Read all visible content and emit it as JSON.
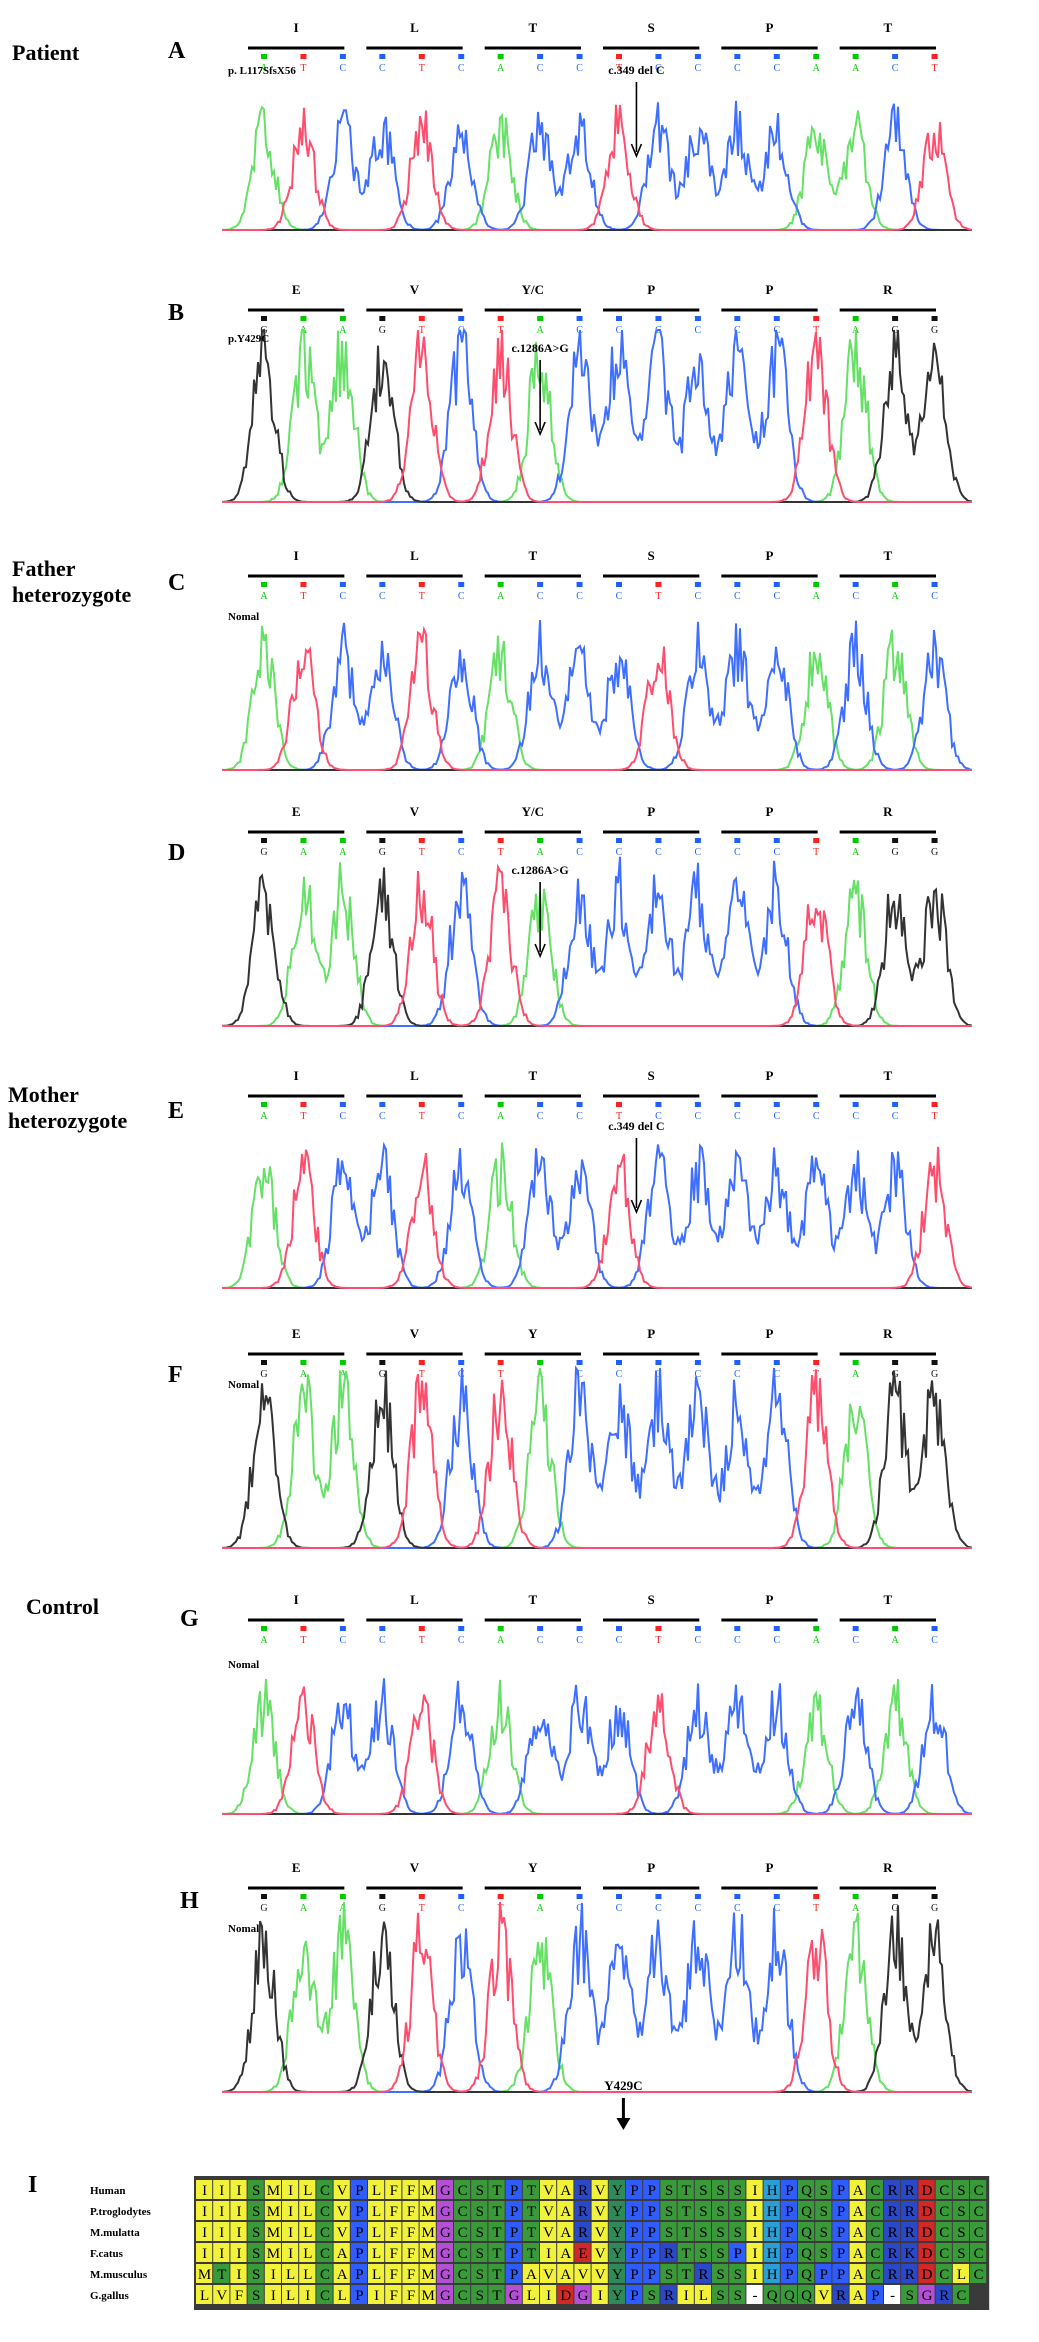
{
  "groups": {
    "patient": "Patient",
    "father": "Father heterozygote",
    "mother": "Mother heterozygote",
    "control": "Control"
  },
  "panels": [
    {
      "letter": "A",
      "aa": [
        "I",
        "L",
        "T",
        "S",
        "P",
        "T"
      ],
      "bases": [
        "A",
        "T",
        "C",
        "C",
        "T",
        "C",
        "A",
        "C",
        "C",
        "T",
        "C",
        "C",
        "C",
        "C",
        "A",
        "A",
        "C",
        "T"
      ],
      "variant": "p. L117SfsX56",
      "mutation": "c.349 del C",
      "seed": 1
    },
    {
      "letter": "B",
      "aa": [
        "E",
        "V",
        "Y/C",
        "P",
        "P",
        "R"
      ],
      "bases": [
        "G",
        "A",
        "A",
        "G",
        "T",
        "C",
        "T",
        "A",
        "C",
        "C",
        "C",
        "C",
        "C",
        "C",
        "T",
        "A",
        "G",
        "G"
      ],
      "variant": "p.Y429C",
      "mutation": "c.1286A>G",
      "seed": 2
    },
    {
      "letter": "C",
      "aa": [
        "I",
        "L",
        "T",
        "S",
        "P",
        "T"
      ],
      "bases": [
        "A",
        "T",
        "C",
        "C",
        "T",
        "C",
        "A",
        "C",
        "C",
        "C",
        "T",
        "C",
        "C",
        "C",
        "A",
        "C",
        "A",
        "C"
      ],
      "variant": "Nomal",
      "mutation": "",
      "seed": 3
    },
    {
      "letter": "D",
      "aa": [
        "E",
        "V",
        "Y/C",
        "P",
        "P",
        "R"
      ],
      "bases": [
        "G",
        "A",
        "A",
        "G",
        "T",
        "C",
        "T",
        "A",
        "C",
        "C",
        "C",
        "C",
        "C",
        "C",
        "T",
        "A",
        "G",
        "G"
      ],
      "variant": "",
      "mutation": "c.1286A>G",
      "seed": 4
    },
    {
      "letter": "E",
      "aa": [
        "I",
        "L",
        "T",
        "S",
        "P",
        "T"
      ],
      "bases": [
        "A",
        "T",
        "C",
        "C",
        "T",
        "C",
        "A",
        "C",
        "C",
        "T",
        "C",
        "C",
        "C",
        "C",
        "C",
        "C",
        "C",
        "T"
      ],
      "variant": "",
      "mutation": "c.349 del C",
      "seed": 5
    },
    {
      "letter": "F",
      "aa": [
        "E",
        "V",
        "Y",
        "P",
        "P",
        "R"
      ],
      "bases": [
        "G",
        "A",
        "A",
        "G",
        "T",
        "C",
        "T",
        "A",
        "C",
        "C",
        "C",
        "C",
        "C",
        "C",
        "T",
        "A",
        "G",
        "G"
      ],
      "variant": "Nomal",
      "mutation": "",
      "seed": 6
    },
    {
      "letter": "G",
      "aa": [
        "I",
        "L",
        "T",
        "S",
        "P",
        "T"
      ],
      "bases": [
        "A",
        "T",
        "C",
        "C",
        "T",
        "C",
        "A",
        "C",
        "C",
        "C",
        "T",
        "C",
        "C",
        "C",
        "A",
        "C",
        "A",
        "C"
      ],
      "variant": "Nomal",
      "mutation": "",
      "seed": 7
    },
    {
      "letter": "H",
      "aa": [
        "E",
        "V",
        "Y",
        "P",
        "P",
        "R"
      ],
      "bases": [
        "G",
        "A",
        "A",
        "G",
        "T",
        "C",
        "T",
        "A",
        "C",
        "C",
        "C",
        "C",
        "C",
        "C",
        "T",
        "A",
        "G",
        "G"
      ],
      "variant": "Nomal",
      "mutation": "",
      "seed": 8
    }
  ],
  "alignment": {
    "letter": "I",
    "marker": "Y429C",
    "species": [
      {
        "name": "Human",
        "seq": "IIISMILCVPLFFMGCSTPTVARVYPPSTSSSIHPQSPACRRDCSC"
      },
      {
        "name": "P.troglodytes",
        "seq": "IIISMILCVPLFFMGCSTPTVARVYPPSTSSSIHPQSPACRRDCSC"
      },
      {
        "name": "M.mulatta",
        "seq": "IIISMILCVPLFFMGCSTPTVARVYPPSTSSSIHPQSPACRRDCSC"
      },
      {
        "name": "F.catus",
        "seq": "IIISMILCAPLFFMGCSTPTIAEVYPPRTSSPIHPQSPACRKDCSC"
      },
      {
        "name": "M.musculus",
        "seq": "MTISILLCAPLFFMGCSTPAVAVVYPPSTRSSIHPQPPACRRDCLC"
      },
      {
        "name": "G.gallus",
        "seq": "LVFSILICLPIFFMGCSTGLIDGIYPSRILSS-QQQVRAP-SGRC"
      }
    ]
  },
  "colors": {
    "A": "#00cc00",
    "C": "#1f5fff",
    "G": "#111111",
    "T": "#ff2020"
  }
}
